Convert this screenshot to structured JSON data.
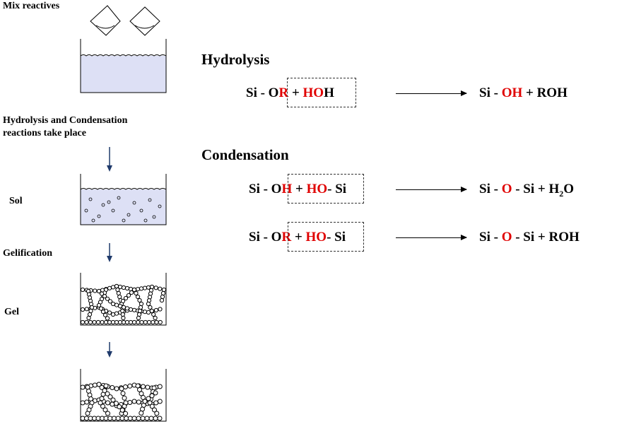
{
  "steps": {
    "mix": "Mix reactives",
    "hydrolysis_condensation": "Hydrolysis and Condensation\nreactions take place",
    "sol": "Sol",
    "gelification": "Gelification",
    "gel": "Gel"
  },
  "hydrolysis": {
    "title": "Hydrolysis",
    "eq1": {
      "si_o": "Si - O",
      "r": "R",
      "plus": " + ",
      "ho": "HO",
      "h": "H",
      "product_si": "Si - ",
      "product_oh": "OH",
      "product_rest": " + ROH"
    }
  },
  "condensation": {
    "title": "Condensation",
    "eq1": {
      "si_o": "Si - O",
      "h": "H",
      "plus": " + ",
      "ho": "HO",
      "si": "- Si",
      "product_si": "Si - ",
      "product_o": "O",
      "product_rest": " - Si + H",
      "sub2": "2",
      "product_end": "O"
    },
    "eq2": {
      "si_o": "Si - O",
      "r": "R",
      "plus": " + ",
      "ho": "HO",
      "si": "- Si",
      "product_si": "Si - ",
      "product_o": "O",
      "product_rest": " - Si + ROH"
    }
  },
  "colors": {
    "highlight": "#e00000",
    "container_fill": "#dde0f5"
  }
}
